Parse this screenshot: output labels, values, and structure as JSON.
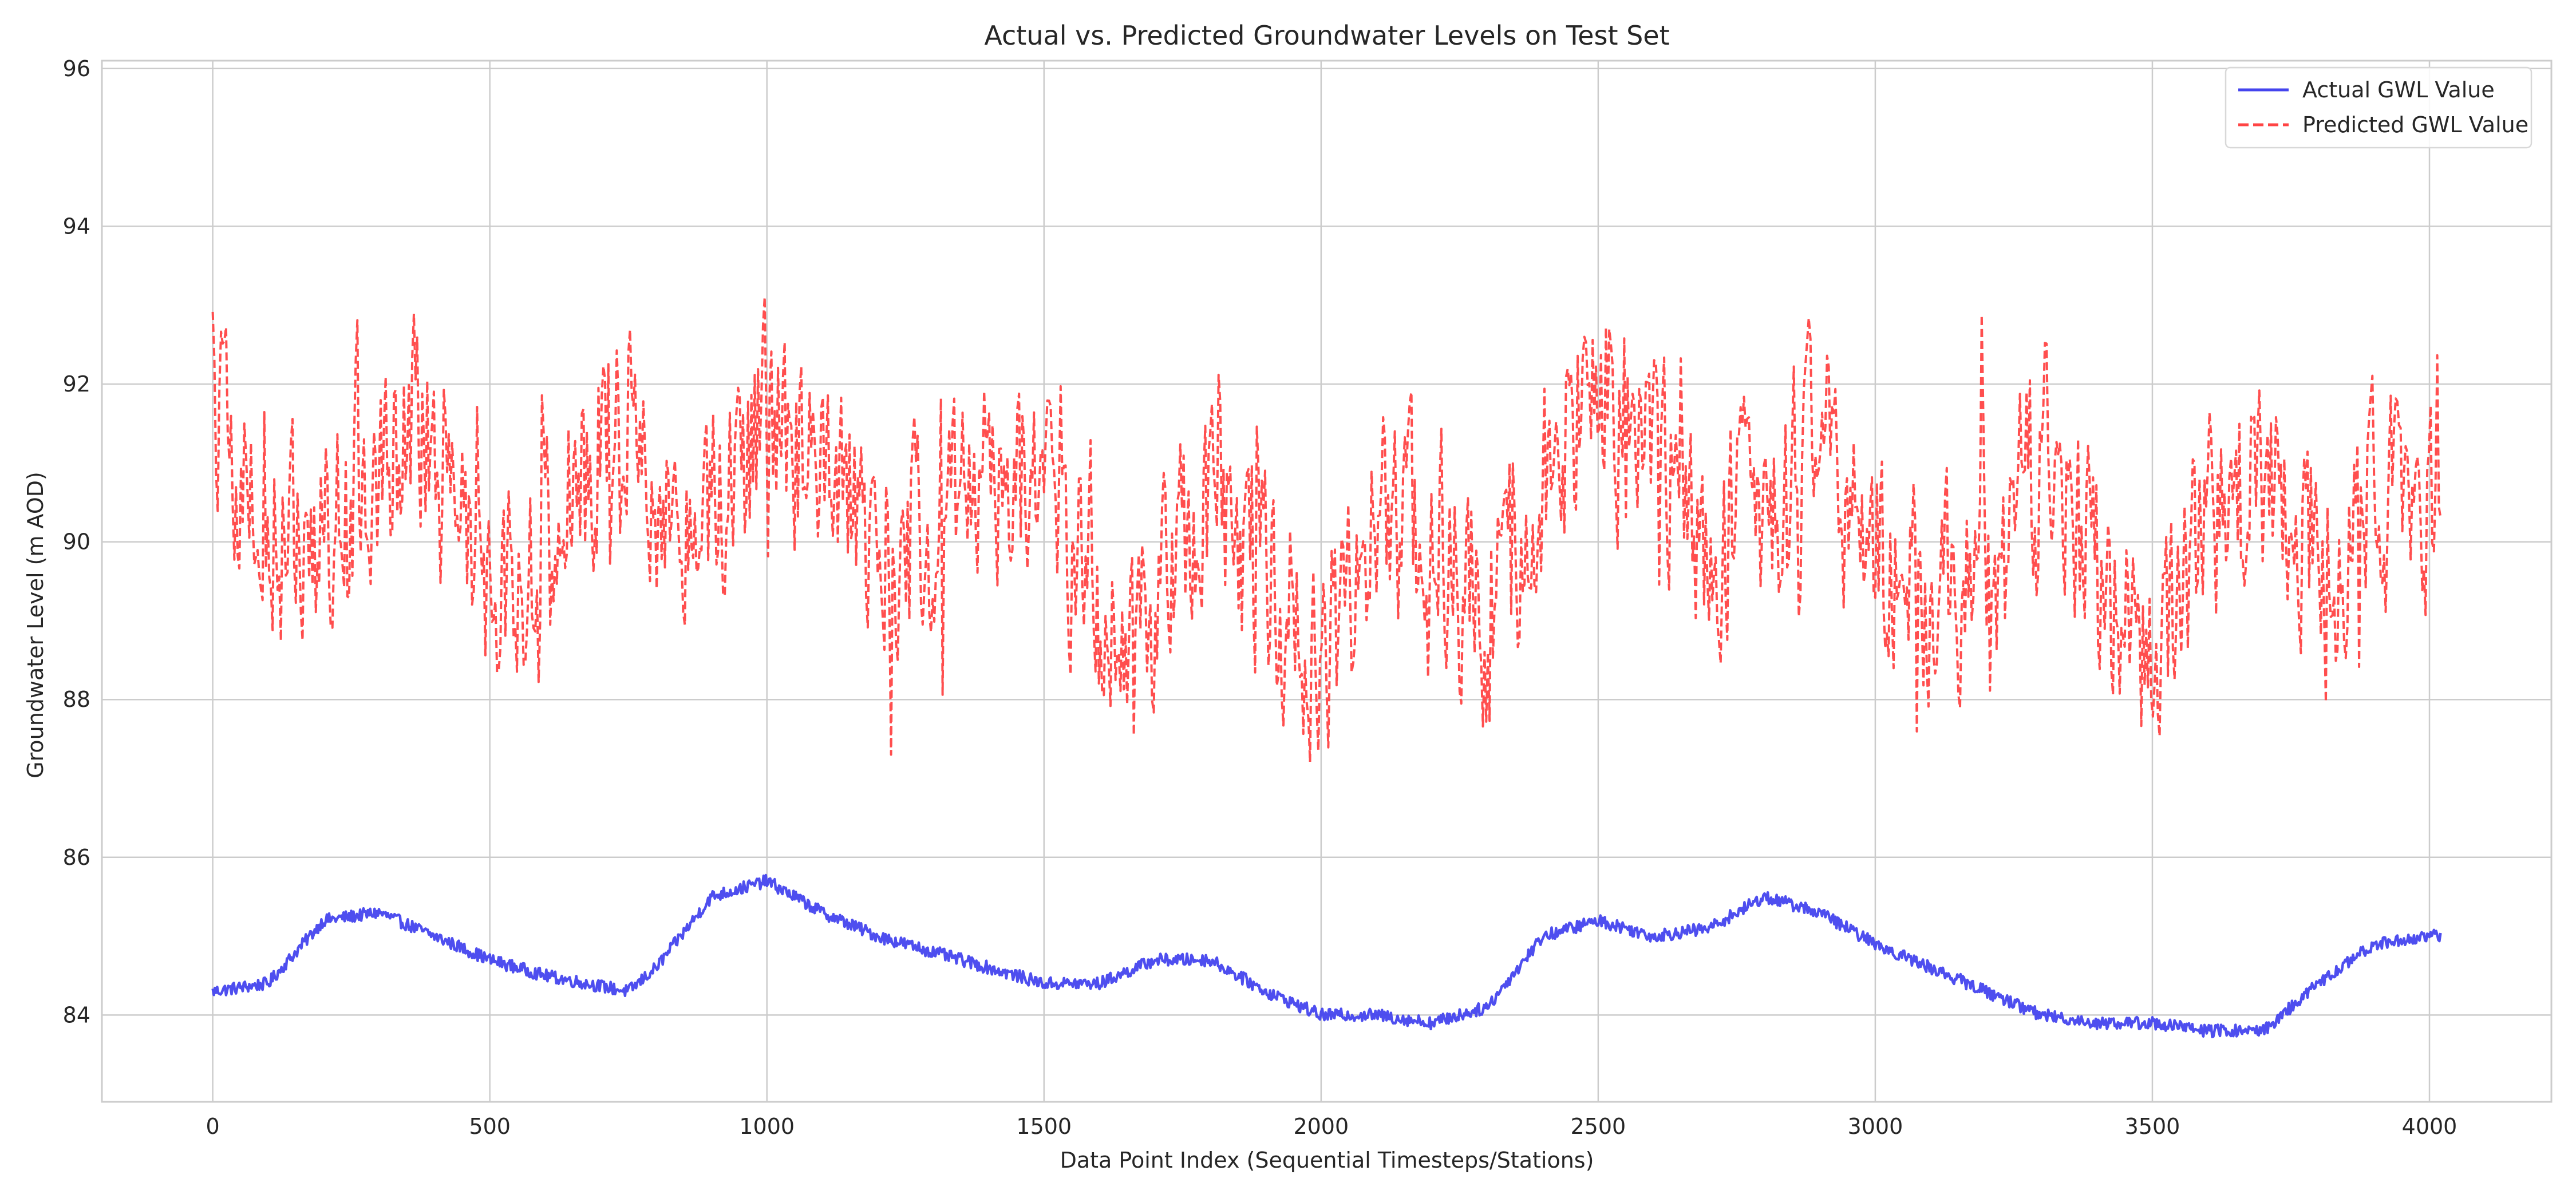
{
  "chart_data": {
    "type": "line",
    "title": "Actual vs. Predicted Groundwater Levels on Test Set",
    "xlabel": "Data Point Index (Sequential Timesteps/Stations)",
    "ylabel": "Groundwater Level (m AOD)",
    "xlim": [
      -200,
      4220
    ],
    "ylim": [
      82.9,
      96.1
    ],
    "xticks": [
      0,
      500,
      1000,
      1500,
      2000,
      2500,
      3000,
      3500,
      4000
    ],
    "yticks": [
      84,
      86,
      88,
      90,
      92,
      94,
      96
    ],
    "grid": true,
    "legend_position": "top-right",
    "series": [
      {
        "name": "Actual GWL Value",
        "color": "#4444ee",
        "style": "solid",
        "anchors_x": [
          0,
          100,
          200,
          300,
          400,
          500,
          600,
          750,
          800,
          900,
          1000,
          1100,
          1200,
          1300,
          1400,
          1500,
          1600,
          1700,
          1800,
          1900,
          2000,
          2100,
          2200,
          2300,
          2400,
          2500,
          2600,
          2700,
          2800,
          2900,
          3000,
          3100,
          3200,
          3300,
          3400,
          3500,
          3600,
          3700,
          3800,
          3900,
          4000
        ],
        "anchors_y": [
          84.3,
          84.4,
          85.2,
          85.3,
          85.0,
          84.7,
          84.5,
          84.3,
          84.6,
          85.5,
          85.7,
          85.3,
          85.0,
          84.8,
          84.6,
          84.4,
          84.4,
          84.7,
          84.7,
          84.3,
          84.0,
          84.0,
          83.9,
          84.1,
          85.0,
          85.2,
          85.0,
          85.1,
          85.5,
          85.3,
          84.9,
          84.6,
          84.3,
          84.0,
          83.9,
          83.9,
          83.8,
          83.8,
          84.4,
          84.9,
          85.0
        ],
        "noise": 0.08
      },
      {
        "name": "Predicted GWL Value",
        "color": "#ff4444",
        "style": "dashed",
        "anchors_x": [
          0,
          100,
          200,
          300,
          400,
          500,
          600,
          750,
          800,
          900,
          1000,
          1100,
          1200,
          1300,
          1400,
          1500,
          1600,
          1700,
          1800,
          1900,
          2000,
          2100,
          2200,
          2300,
          2400,
          2500,
          2600,
          2700,
          2800,
          2900,
          3000,
          3100,
          3200,
          3300,
          3400,
          3500,
          3600,
          3700,
          3800,
          3900,
          4000
        ],
        "anchors_y": [
          91.5,
          90.0,
          90.0,
          91.2,
          91.5,
          89.5,
          89.8,
          92.0,
          90.5,
          90.5,
          91.5,
          90.7,
          90.0,
          90.0,
          90.8,
          90.8,
          89.0,
          89.0,
          90.8,
          89.5,
          88.5,
          90.2,
          90.3,
          89.0,
          90.8,
          92.3,
          91.2,
          90.0,
          90.5,
          91.3,
          90.0,
          89.3,
          89.3,
          91.3,
          89.5,
          88.3,
          90.2,
          90.7,
          89.8,
          90.5,
          90.5
        ],
        "noise": 1.2
      }
    ]
  }
}
